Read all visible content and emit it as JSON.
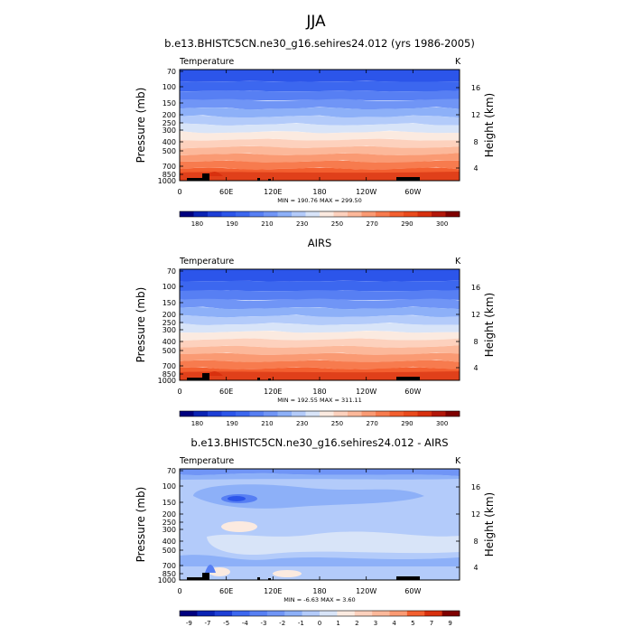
{
  "page": {
    "title": "JJA"
  },
  "chart_data": [
    {
      "type": "heatmap",
      "title": "b.e13.BHISTC5CN.ne30_g16.sehires24.012 (yrs 1986-2005)",
      "field_label": "Temperature",
      "units": "K",
      "ylabel": "Pressure (mb)",
      "y2label": "Height (km)",
      "x_ticks": [
        "0",
        "60E",
        "120E",
        "180",
        "120W",
        "60W"
      ],
      "y_ticks": [
        "70",
        "100",
        "150",
        "200",
        "250",
        "300",
        "400",
        "500",
        "700",
        "850",
        "1000"
      ],
      "y2_ticks": [
        "16",
        "12",
        "8",
        "4"
      ],
      "ylim": [
        1000,
        70
      ],
      "stats": {
        "min": "190.76",
        "max": "299.50"
      },
      "stats_text": "MIN = 190.76  MAX = 299.50",
      "colorbar_labels": [
        "180",
        "190",
        "210",
        "230",
        "250",
        "270",
        "290",
        "300"
      ],
      "bands": [
        "#2c55ea",
        "#3c67ef",
        "#577ff3",
        "#7095f6",
        "#8db0f8",
        "#b3cbfa",
        "#d8e4f8",
        "#fbeae0",
        "#fdd1bd",
        "#fcb89a",
        "#fa9a73",
        "#f77b4e",
        "#f35f2f",
        "#ea4a1c"
      ]
    },
    {
      "type": "heatmap",
      "title": "AIRS",
      "field_label": "Temperature",
      "units": "K",
      "ylabel": "Pressure (mb)",
      "y2label": "Height (km)",
      "x_ticks": [
        "0",
        "60E",
        "120E",
        "180",
        "120W",
        "60W"
      ],
      "y_ticks": [
        "70",
        "100",
        "150",
        "200",
        "250",
        "300",
        "400",
        "500",
        "700",
        "850",
        "1000"
      ],
      "y2_ticks": [
        "16",
        "12",
        "8",
        "4"
      ],
      "ylim": [
        1000,
        70
      ],
      "stats": {
        "min": "192.55",
        "max": "311.11"
      },
      "stats_text": "MIN = 192.55  MAX = 311.11",
      "colorbar_labels": [
        "180",
        "190",
        "210",
        "230",
        "250",
        "270",
        "290",
        "300"
      ],
      "bands": [
        "#2c55ea",
        "#3c67ef",
        "#577ff3",
        "#7095f6",
        "#8db0f8",
        "#b3cbfa",
        "#d8e4f8",
        "#fbeae0",
        "#fdd1bd",
        "#fcb89a",
        "#fa9a73",
        "#f77b4e",
        "#f35f2f",
        "#ea4a1c"
      ]
    },
    {
      "type": "heatmap",
      "title": "b.e13.BHISTC5CN.ne30_g16.sehires24.012 - AIRS",
      "field_label": "Temperature",
      "units": "K",
      "ylabel": "Pressure (mb)",
      "y2label": "Height (km)",
      "x_ticks": [
        "0",
        "60E",
        "120E",
        "180",
        "120W",
        "60W"
      ],
      "y_ticks": [
        "70",
        "100",
        "150",
        "200",
        "250",
        "300",
        "400",
        "500",
        "700",
        "850",
        "1000"
      ],
      "y2_ticks": [
        "16",
        "12",
        "8",
        "4"
      ],
      "ylim": [
        1000,
        70
      ],
      "stats": {
        "min": "-6.63",
        "max": "3.60"
      },
      "stats_text": "MIN =  -6.63  MAX =  3.60",
      "colorbar_labels": [
        "-9",
        "-7",
        "-5",
        "-4",
        "-3",
        "-2",
        "-1",
        "0",
        "1",
        "2",
        "3",
        "4",
        "5",
        "7",
        "9"
      ],
      "background": "#b3cbfa"
    }
  ],
  "colorbar_colors": {
    "absolute": [
      "#00007f",
      "#0a23b4",
      "#1e3fd6",
      "#2c55ea",
      "#3c67ef",
      "#577ff3",
      "#7095f6",
      "#8db0f8",
      "#b3cbfa",
      "#d8e4f8",
      "#fbeae0",
      "#fdd1bd",
      "#fcb89a",
      "#fa9a73",
      "#f77b4e",
      "#f35f2f",
      "#ea4a1c",
      "#d8300e",
      "#b3170a",
      "#7f0000"
    ],
    "difference": [
      "#00007f",
      "#0a23b4",
      "#1e3fd6",
      "#3c67ef",
      "#577ff3",
      "#7095f6",
      "#8db0f8",
      "#b3cbfa",
      "#d8e4f8",
      "#fbeae0",
      "#fdd1bd",
      "#fcb89a",
      "#fa9a73",
      "#f35f2f",
      "#d8300e",
      "#7f0000"
    ]
  }
}
